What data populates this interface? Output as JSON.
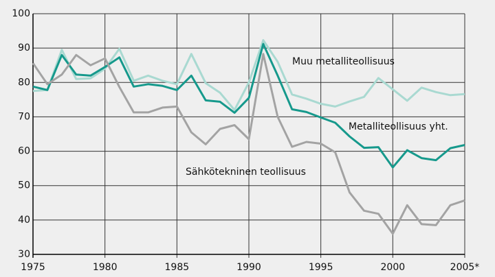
{
  "chart_data": {
    "type": "line",
    "x": [
      1975,
      1976,
      1977,
      1978,
      1979,
      1980,
      1981,
      1982,
      1983,
      1984,
      1985,
      1986,
      1987,
      1988,
      1989,
      1990,
      1991,
      1992,
      1993,
      1994,
      1995,
      1996,
      1997,
      1998,
      1999,
      2000,
      2001,
      2002,
      2003,
      2004,
      2005
    ],
    "series": [
      {
        "name": "Muu metalliteollisuus",
        "color": "#a9d9d1",
        "values": [
          77.5,
          77.8,
          89.5,
          81,
          81.2,
          84,
          89.8,
          80.5,
          82,
          80.5,
          79.5,
          88.3,
          79.8,
          77,
          72,
          80,
          92.3,
          86,
          76.5,
          75.3,
          73.8,
          73,
          74.5,
          75.8,
          81.3,
          78,
          74.7,
          78.5,
          77.2,
          76.3,
          76.6
        ]
      },
      {
        "name": "Metalliteollisuus yht.",
        "color": "#16998c",
        "values": [
          78.8,
          77.8,
          88,
          82.3,
          82,
          84.5,
          87.3,
          78.8,
          79.5,
          79,
          77.8,
          82,
          74.8,
          74.4,
          71.2,
          75.5,
          91.2,
          82,
          72.2,
          71.4,
          69.8,
          68.3,
          64.3,
          61,
          61.2,
          55.3,
          60.3,
          58,
          57.4,
          60.9,
          61.8
        ]
      },
      {
        "name": "Sähkötekninen teollisuus",
        "color": "#a3a3a3",
        "values": [
          85.6,
          79.5,
          82.3,
          88,
          85,
          87,
          78.7,
          71.3,
          71.3,
          72.7,
          73,
          65.5,
          62,
          66.5,
          67.6,
          63.5,
          88.3,
          70,
          61.3,
          62.7,
          62.2,
          59.7,
          48,
          42.7,
          41.8,
          36,
          44.3,
          38.8,
          38.5,
          44.3,
          45.7
        ]
      }
    ],
    "xlim": [
      1975,
      2005
    ],
    "xticks": [
      1975,
      1980,
      1985,
      1990,
      1995,
      2000,
      {
        "value": 2005,
        "label": "2005*"
      }
    ],
    "ylim": [
      30,
      100
    ],
    "yticks": [
      30,
      40,
      50,
      60,
      70,
      80,
      90,
      100
    ],
    "grid": true
  }
}
